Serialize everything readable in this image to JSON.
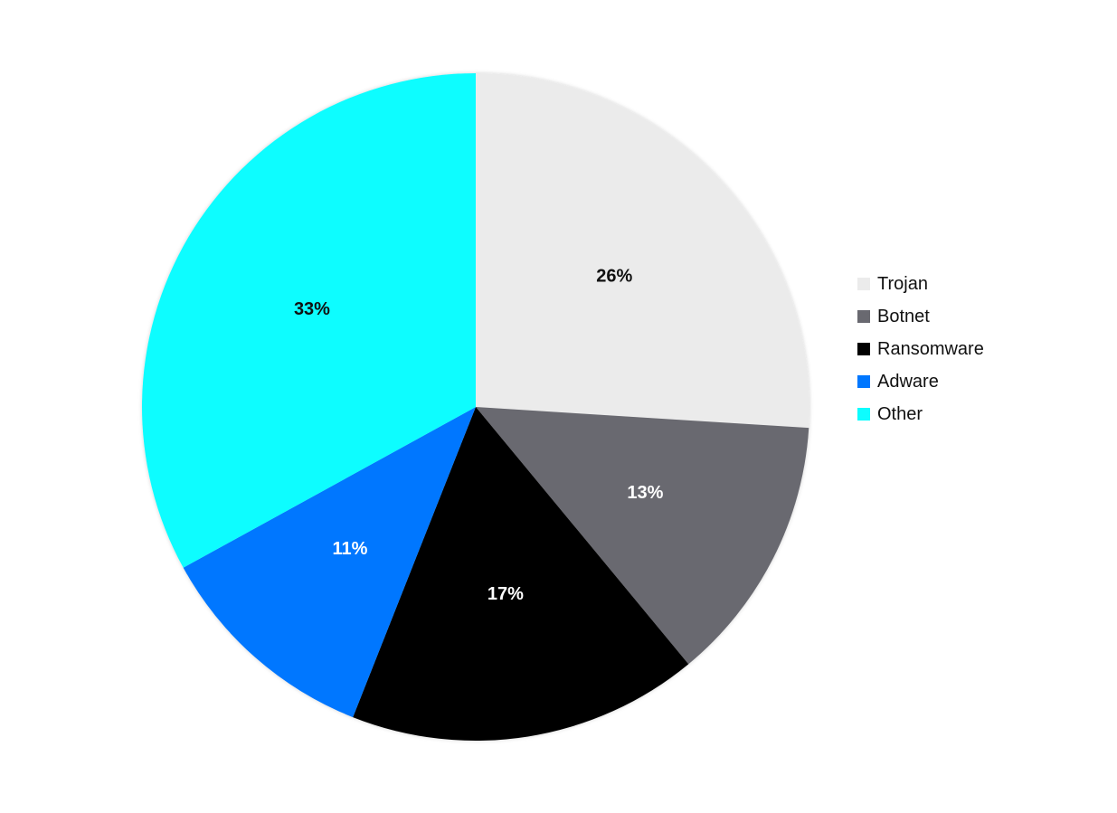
{
  "chart_data": {
    "type": "pie",
    "title": "",
    "categories": [
      "Trojan",
      "Botnet",
      "Ransomware",
      "Adware",
      "Other"
    ],
    "values": [
      26,
      13,
      17,
      11,
      33
    ],
    "value_labels": [
      "26%",
      "13%",
      "17%",
      "11%",
      "33%"
    ],
    "colors": [
      "#ebebeb",
      "#696970",
      "#000000",
      "#0077ff",
      "#0dfdff"
    ],
    "label_colors": [
      "#111111",
      "#ffffff",
      "#ffffff",
      "#ffffff",
      "#111111"
    ],
    "start": "12 o'clock",
    "direction": "clockwise",
    "legend_position": "right"
  },
  "legend": {
    "items": [
      {
        "label": "Trojan",
        "color": "#ebebeb"
      },
      {
        "label": "Botnet",
        "color": "#696970"
      },
      {
        "label": "Ransomware",
        "color": "#000000"
      },
      {
        "label": "Adware",
        "color": "#0077ff"
      },
      {
        "label": "Other",
        "color": "#0dfdff"
      }
    ]
  }
}
